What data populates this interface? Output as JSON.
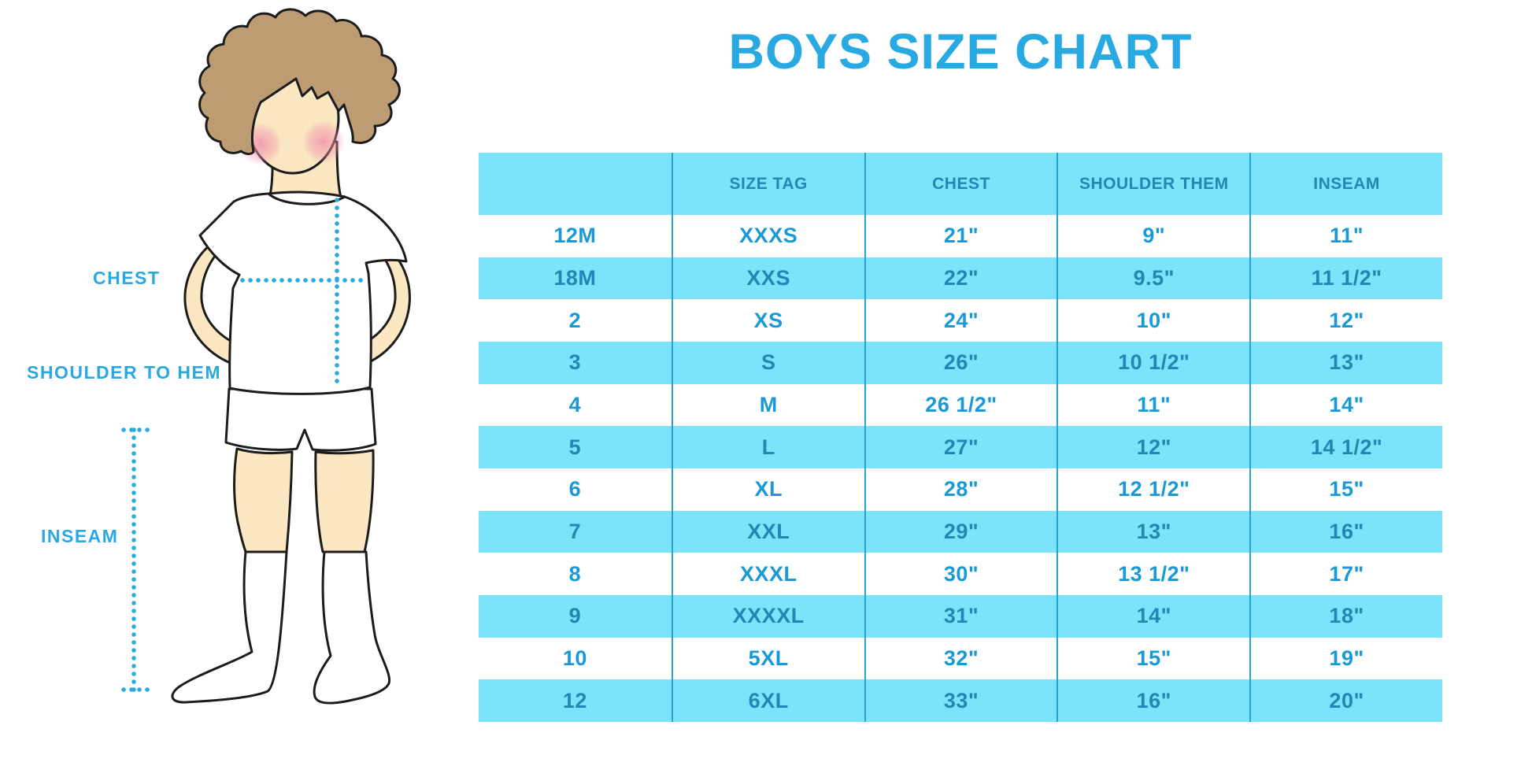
{
  "title": "BOYS SIZE CHART",
  "figure": {
    "illustration": "boy-standing-front",
    "labels": {
      "chest": "CHEST",
      "shoulder_to_hem": "SHOULDER TO HEM",
      "inseam": "INSEAM"
    }
  },
  "table": {
    "headers": [
      "",
      "SIZE TAG",
      "CHEST",
      "SHOULDER THEM",
      "INSEAM"
    ],
    "rows": [
      [
        "12M",
        "XXXS",
        "21\"",
        "9\"",
        "11\""
      ],
      [
        "18M",
        "XXS",
        "22\"",
        "9.5\"",
        "11 1/2\""
      ],
      [
        "2",
        "XS",
        "24\"",
        "10\"",
        "12\""
      ],
      [
        "3",
        "S",
        "26\"",
        "10 1/2\"",
        "13\""
      ],
      [
        "4",
        "M",
        "26 1/2\"",
        "11\"",
        "14\""
      ],
      [
        "5",
        "L",
        "27\"",
        "12\"",
        "14 1/2\""
      ],
      [
        "6",
        "XL",
        "28\"",
        "12 1/2\"",
        "15\""
      ],
      [
        "7",
        "XXL",
        "29\"",
        "13\"",
        "16\""
      ],
      [
        "8",
        "XXXL",
        "30\"",
        "13 1/2\"",
        "17\""
      ],
      [
        "9",
        "XXXXL",
        "31\"",
        "14\"",
        "18\""
      ],
      [
        "10",
        "5XL",
        "32\"",
        "15\"",
        "19\""
      ],
      [
        "12",
        "6XL",
        "33\"",
        "16\"",
        "20\""
      ]
    ]
  },
  "colors": {
    "accent_blue": "#29A9E2",
    "row_cyan": "#7BE3FA",
    "cyan_row_text": "#2387B3",
    "light_row_text": "#199AD6",
    "column_divider": "#2AA2CE",
    "hair_brown": "#BD9B73",
    "skin": "#FBE7C2",
    "blush_pink": "#F08FAC"
  }
}
